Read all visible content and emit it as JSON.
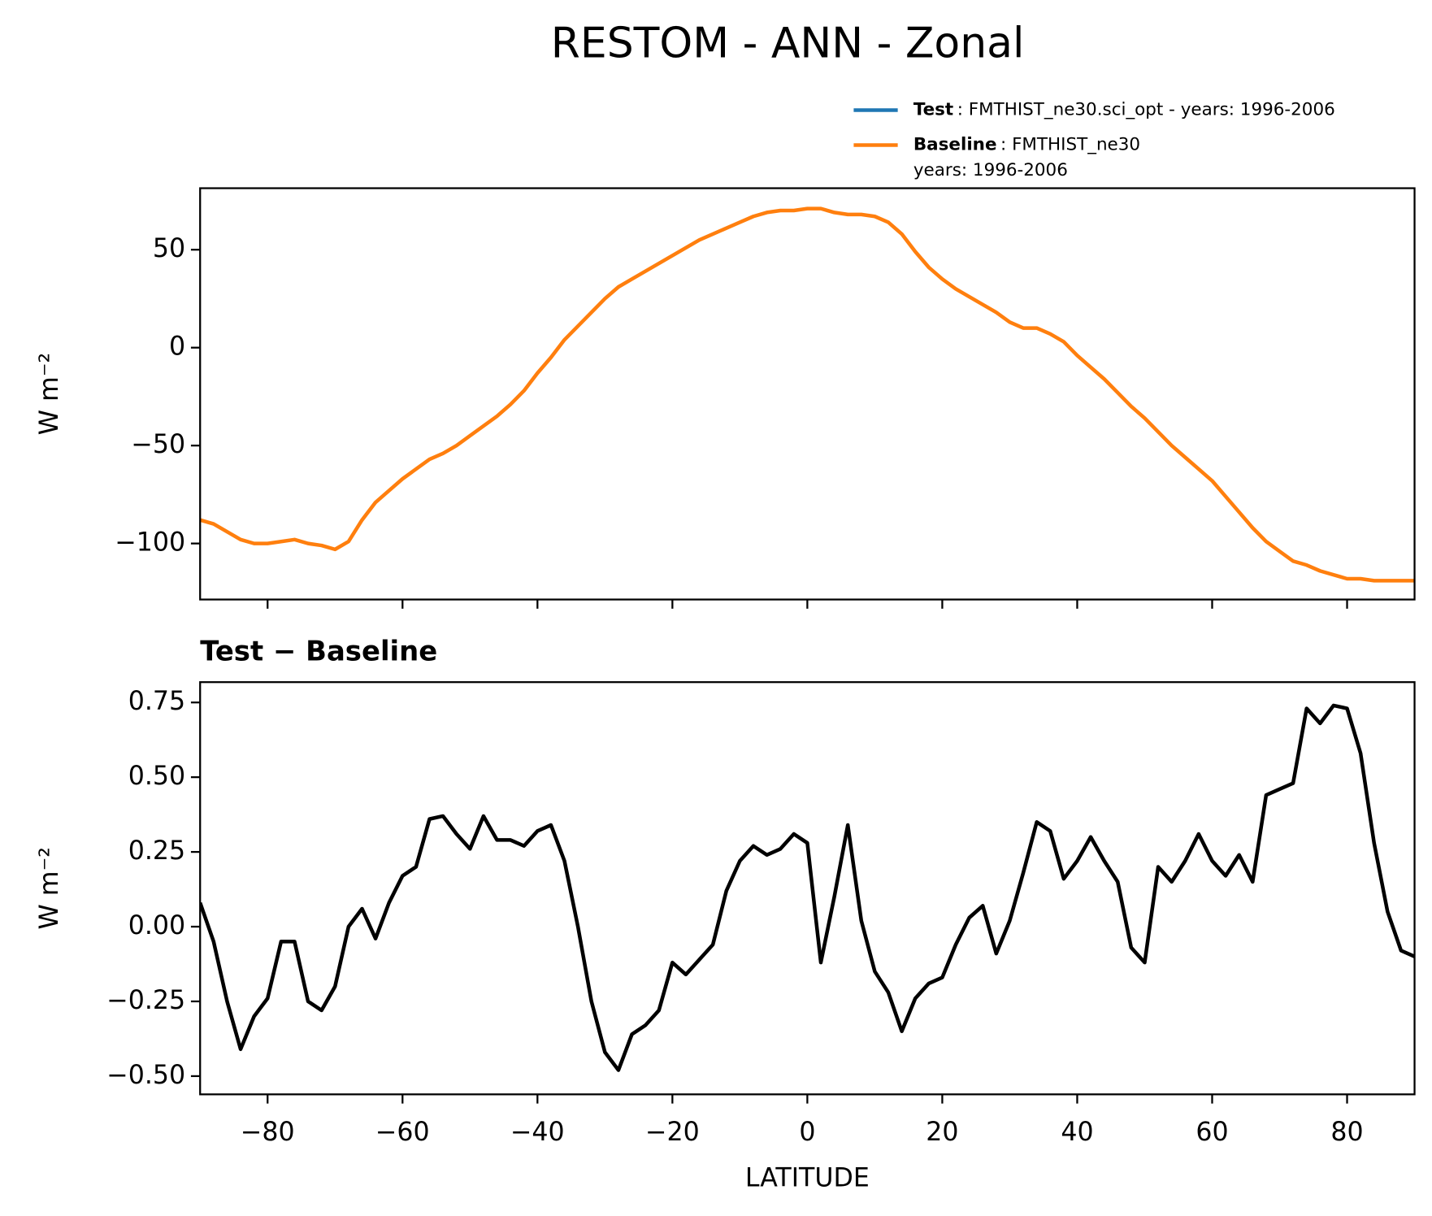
{
  "title": "RESTOM - ANN - Zonal",
  "chart_data": [
    {
      "type": "line",
      "ylabel": "W m⁻²",
      "x": [
        -90,
        -88,
        -86,
        -84,
        -82,
        -80,
        -78,
        -76,
        -74,
        -72,
        -70,
        -68,
        -66,
        -64,
        -62,
        -60,
        -58,
        -56,
        -54,
        -52,
        -50,
        -48,
        -46,
        -44,
        -42,
        -40,
        -38,
        -36,
        -34,
        -32,
        -30,
        -28,
        -26,
        -24,
        -22,
        -20,
        -18,
        -16,
        -14,
        -12,
        -10,
        -8,
        -6,
        -4,
        -2,
        0,
        2,
        4,
        6,
        8,
        10,
        12,
        14,
        16,
        18,
        20,
        22,
        24,
        26,
        28,
        30,
        32,
        34,
        36,
        38,
        40,
        42,
        44,
        46,
        48,
        50,
        52,
        54,
        56,
        58,
        60,
        62,
        64,
        66,
        68,
        70,
        72,
        74,
        76,
        78,
        80,
        82,
        84,
        86,
        88,
        90
      ],
      "series": [
        {
          "name": "Test",
          "description": ": FMTHIST_ne30.sci_opt - years: 1996-2006",
          "color": "#1f77b4",
          "values": [
            -88,
            -90,
            -94,
            -98,
            -100,
            -100,
            -99,
            -98,
            -100,
            -101,
            -103,
            -99,
            -88,
            -79,
            -73,
            -67,
            -62,
            -57,
            -54,
            -50,
            -45,
            -40,
            -35,
            -29,
            -22,
            -13,
            -5,
            4,
            11,
            18,
            25,
            31,
            35,
            39,
            43,
            47,
            51,
            55,
            58,
            61,
            64,
            67,
            69,
            70,
            70,
            71,
            71,
            69,
            68,
            68,
            67,
            64,
            58,
            49,
            41,
            35,
            30,
            26,
            22,
            18,
            13,
            10,
            10,
            7,
            3,
            -4,
            -10,
            -16,
            -23,
            -30,
            -36,
            -43,
            -50,
            -56,
            -62,
            -68,
            -76,
            -84,
            -92,
            -99,
            -104,
            -109,
            -111,
            -114,
            -116,
            -118,
            -118,
            -119,
            -119,
            -119,
            -119
          ]
        },
        {
          "name": "Baseline",
          "description": ": FMTHIST_ne30",
          "description2": "years: 1996-2006",
          "color": "#ff7f0e",
          "values": [
            -88,
            -90,
            -94,
            -98,
            -100,
            -100,
            -99,
            -98,
            -100,
            -101,
            -103,
            -99,
            -88,
            -79,
            -73,
            -67,
            -62,
            -57,
            -54,
            -50,
            -45,
            -40,
            -35,
            -29,
            -22,
            -13,
            -5,
            4,
            11,
            18,
            25,
            31,
            35,
            39,
            43,
            47,
            51,
            55,
            58,
            61,
            64,
            67,
            69,
            70,
            70,
            71,
            71,
            69,
            68,
            68,
            67,
            64,
            58,
            49,
            41,
            35,
            30,
            26,
            22,
            18,
            13,
            10,
            10,
            7,
            3,
            -4,
            -10,
            -16,
            -23,
            -30,
            -36,
            -43,
            -50,
            -56,
            -62,
            -68,
            -76,
            -84,
            -92,
            -99,
            -104,
            -109,
            -111,
            -114,
            -116,
            -118,
            -118,
            -119,
            -119,
            -119,
            -119
          ]
        }
      ],
      "xlim": [
        -90,
        90
      ],
      "xticks": [
        -80,
        -60,
        -40,
        -20,
        0,
        20,
        40,
        60,
        80
      ],
      "ylim": [
        -128.6,
        81.4
      ],
      "yticks": [
        {
          "value": -100,
          "label": "−100"
        },
        {
          "value": -50,
          "label": "−50"
        },
        0,
        50
      ]
    },
    {
      "type": "line",
      "title": "Test − Baseline",
      "xlabel": "LATITUDE",
      "ylabel": "W m⁻²",
      "x": [
        -90,
        -88,
        -86,
        -84,
        -82,
        -80,
        -78,
        -76,
        -74,
        -72,
        -70,
        -68,
        -66,
        -64,
        -62,
        -60,
        -58,
        -56,
        -54,
        -52,
        -50,
        -48,
        -46,
        -44,
        -42,
        -40,
        -38,
        -36,
        -34,
        -32,
        -30,
        -28,
        -26,
        -24,
        -22,
        -20,
        -18,
        -16,
        -14,
        -12,
        -10,
        -8,
        -6,
        -4,
        -2,
        0,
        2,
        4,
        6,
        8,
        10,
        12,
        14,
        16,
        18,
        20,
        22,
        24,
        26,
        28,
        30,
        32,
        34,
        36,
        38,
        40,
        42,
        44,
        46,
        48,
        50,
        52,
        54,
        56,
        58,
        60,
        62,
        64,
        66,
        68,
        70,
        72,
        74,
        76,
        78,
        80,
        82,
        84,
        86,
        88,
        90
      ],
      "series": [
        {
          "color": "#000000",
          "values": [
            0.08,
            -0.05,
            -0.25,
            -0.41,
            -0.3,
            -0.24,
            -0.05,
            -0.05,
            -0.25,
            -0.28,
            -0.2,
            0.0,
            0.06,
            -0.04,
            0.08,
            0.17,
            0.2,
            0.36,
            0.37,
            0.31,
            0.26,
            0.37,
            0.29,
            0.29,
            0.27,
            0.32,
            0.34,
            0.22,
            0.0,
            -0.25,
            -0.42,
            -0.48,
            -0.36,
            -0.33,
            -0.28,
            -0.12,
            -0.16,
            -0.11,
            -0.06,
            0.12,
            0.22,
            0.27,
            0.24,
            0.26,
            0.31,
            0.28,
            -0.12,
            0.1,
            0.34,
            0.02,
            -0.15,
            -0.22,
            -0.35,
            -0.24,
            -0.19,
            -0.17,
            -0.06,
            0.03,
            0.07,
            -0.09,
            0.02,
            0.18,
            0.35,
            0.32,
            0.16,
            0.22,
            0.3,
            0.22,
            0.15,
            -0.07,
            -0.12,
            0.2,
            0.15,
            0.22,
            0.31,
            0.22,
            0.17,
            0.24,
            0.15,
            0.44,
            0.46,
            0.48,
            0.73,
            0.68,
            0.74,
            0.73,
            0.58,
            0.28,
            0.05,
            -0.08,
            -0.1
          ]
        }
      ],
      "xlim": [
        -90,
        90
      ],
      "xticks": [
        {
          "value": -80,
          "label": "−80"
        },
        {
          "value": -60,
          "label": "−60"
        },
        {
          "value": -40,
          "label": "−40"
        },
        {
          "value": -20,
          "label": "−20"
        },
        0,
        20,
        40,
        60,
        80
      ],
      "ylim": [
        -0.561,
        0.818
      ],
      "yticks": [
        {
          "value": -0.5,
          "label": "−0.50"
        },
        {
          "value": -0.25,
          "label": "−0.25"
        },
        {
          "value": 0,
          "label": "0.00"
        },
        0.25,
        {
          "value": 0.5,
          "label": "0.50"
        },
        0.75
      ]
    }
  ]
}
